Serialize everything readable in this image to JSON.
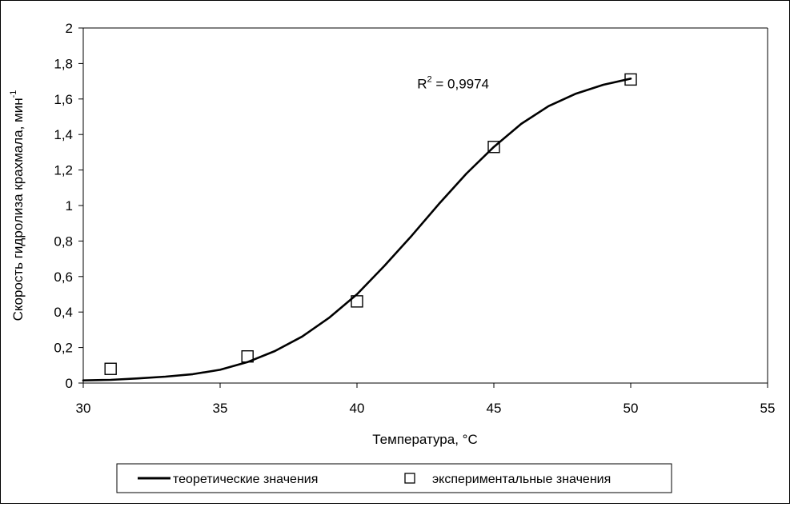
{
  "chart_data": {
    "type": "scatter",
    "title": "",
    "xlabel": "Температура, °C",
    "ylabel": "Скорость гидролиза крахмала, мин",
    "ylabel_sup": "-1",
    "xlim": [
      30,
      55
    ],
    "ylim": [
      0,
      2
    ],
    "x_ticks": [
      {
        "v": 30,
        "label": "30"
      },
      {
        "v": 35,
        "label": "35"
      },
      {
        "v": 40,
        "label": "40"
      },
      {
        "v": 45,
        "label": "45"
      },
      {
        "v": 50,
        "label": "50"
      },
      {
        "v": 55,
        "label": "55"
      }
    ],
    "y_ticks": [
      {
        "v": 0,
        "label": "0"
      },
      {
        "v": 0.2,
        "label": "0,2"
      },
      {
        "v": 0.4,
        "label": "0,4"
      },
      {
        "v": 0.6,
        "label": "0,6"
      },
      {
        "v": 0.8,
        "label": "0,8"
      },
      {
        "v": 1.0,
        "label": "1"
      },
      {
        "v": 1.2,
        "label": "1,2"
      },
      {
        "v": 1.4,
        "label": "1,4"
      },
      {
        "v": 1.6,
        "label": "1,6"
      },
      {
        "v": 1.8,
        "label": "1,8"
      },
      {
        "v": 2.0,
        "label": "2"
      }
    ],
    "grid": false,
    "legend_position": "bottom",
    "series": [
      {
        "name": "теоретические значения",
        "kind": "line",
        "color": "#000000",
        "x": [
          30,
          31,
          32,
          33,
          34,
          35,
          36,
          37,
          38,
          39,
          40,
          41,
          42,
          43,
          44,
          45,
          46,
          47,
          48,
          49,
          50
        ],
        "y": [
          0.015,
          0.018,
          0.026,
          0.036,
          0.05,
          0.075,
          0.118,
          0.18,
          0.262,
          0.37,
          0.5,
          0.66,
          0.83,
          1.01,
          1.18,
          1.33,
          1.46,
          1.56,
          1.63,
          1.68,
          1.715
        ]
      },
      {
        "name": "экспериментальные значения",
        "kind": "markers",
        "marker": "open-square",
        "color": "#000000",
        "x": [
          31,
          36,
          40,
          45,
          50
        ],
        "y": [
          0.08,
          0.15,
          0.46,
          1.33,
          1.71
        ]
      }
    ],
    "annotations": [
      {
        "text": "R",
        "sup": "2",
        "rest": " = 0,9974",
        "x": 42.2,
        "y": 1.66
      }
    ]
  },
  "legend": {
    "line_label": "теоретические значения",
    "marker_label": "экспериментальные значения"
  }
}
